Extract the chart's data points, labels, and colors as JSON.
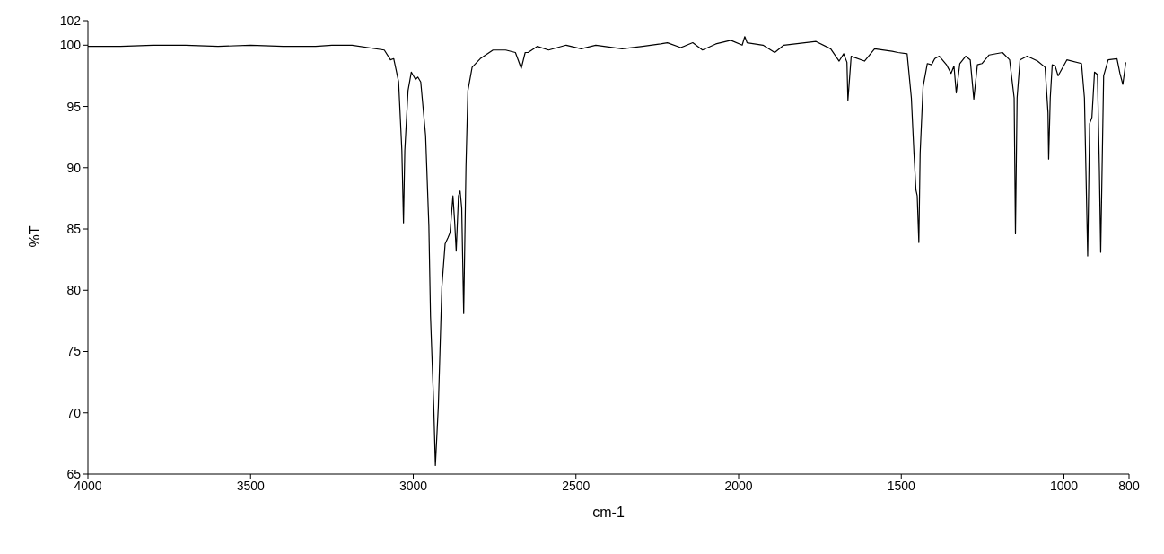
{
  "chart_data": {
    "type": "line",
    "xlabel": "cm-1",
    "ylabel": "%T",
    "xlim": [
      4000,
      800
    ],
    "xticks": [
      4000,
      3500,
      3000,
      2500,
      2000,
      1500,
      1000,
      800
    ],
    "ylim": [
      65,
      102
    ],
    "yticks": [
      65,
      70,
      75,
      80,
      85,
      90,
      95,
      100,
      102
    ],
    "marker": "none",
    "line_style": "solid",
    "series": [
      {
        "color": "#000000",
        "x": [
          4000,
          3900,
          3800,
          3700,
          3600,
          3500,
          3400,
          3300,
          3250,
          3188,
          3089,
          3070,
          3060,
          3045,
          3035,
          3030,
          3026,
          3016,
          3006,
          2993,
          2986,
          2977,
          2962,
          2952,
          2947,
          2937,
          2932,
          2923,
          2912,
          2902,
          2893,
          2887,
          2878,
          2873,
          2868,
          2861,
          2856,
          2851,
          2845,
          2838,
          2832,
          2819,
          2794,
          2755,
          2716,
          2686,
          2668,
          2656,
          2647,
          2619,
          2584,
          2530,
          2484,
          2439,
          2358,
          2295,
          2240,
          2219,
          2178,
          2141,
          2111,
          2070,
          2024,
          1989,
          1981,
          1974,
          1925,
          1889,
          1861,
          1762,
          1717,
          1691,
          1677,
          1667,
          1664,
          1654,
          1613,
          1582,
          1528,
          1510,
          1482,
          1469,
          1461,
          1455,
          1451,
          1446,
          1442,
          1433,
          1420,
          1407,
          1397,
          1383,
          1361,
          1347,
          1338,
          1331,
          1320,
          1302,
          1288,
          1277,
          1266,
          1252,
          1230,
          1189,
          1167,
          1153,
          1149,
          1144,
          1135,
          1113,
          1081,
          1058,
          1049,
          1047,
          1042,
          1036,
          1027,
          1018,
          991,
          946,
          937,
          927,
          921,
          914,
          906,
          897,
          891,
          887,
          878,
          864,
          837,
          828,
          819,
          810
        ],
        "values": [
          99.9,
          99.9,
          100,
          100,
          99.9,
          100,
          99.9,
          99.9,
          100,
          100,
          99.6,
          98.8,
          98.9,
          97,
          91.4,
          85.5,
          91.4,
          96.3,
          97.8,
          97.2,
          97.4,
          97,
          92.6,
          85.2,
          77.9,
          70.5,
          65.7,
          70.5,
          80.3,
          83.8,
          84.3,
          84.7,
          87.7,
          85.7,
          83.2,
          87.7,
          88.1,
          86.7,
          78.1,
          90.1,
          96.3,
          98.2,
          98.9,
          99.6,
          99.6,
          99.4,
          98.1,
          99.4,
          99.4,
          99.9,
          99.6,
          100,
          99.7,
          100,
          99.7,
          99.9,
          100.1,
          100.2,
          99.8,
          100.2,
          99.6,
          100.1,
          100.4,
          100,
          100.7,
          100.2,
          100,
          99.4,
          100,
          100.3,
          99.7,
          98.7,
          99.3,
          98.6,
          95.5,
          99.1,
          98.7,
          99.7,
          99.5,
          99.4,
          99.3,
          95.7,
          91.2,
          88.2,
          87.7,
          83.9,
          91.2,
          96.6,
          98.5,
          98.4,
          98.9,
          99.1,
          98.4,
          97.7,
          98.3,
          96.1,
          98.5,
          99.1,
          98.8,
          95.6,
          98.4,
          98.5,
          99.2,
          99.4,
          98.8,
          95.7,
          84.6,
          95.7,
          98.8,
          99.1,
          98.7,
          98.2,
          94.5,
          90.7,
          95.7,
          98.4,
          98.3,
          97.5,
          98.8,
          98.5,
          95.7,
          82.8,
          93.6,
          94.1,
          97.8,
          97.6,
          89.8,
          83.1,
          97.5,
          98.8,
          98.9,
          97.7,
          96.8,
          98.6
        ]
      }
    ]
  }
}
